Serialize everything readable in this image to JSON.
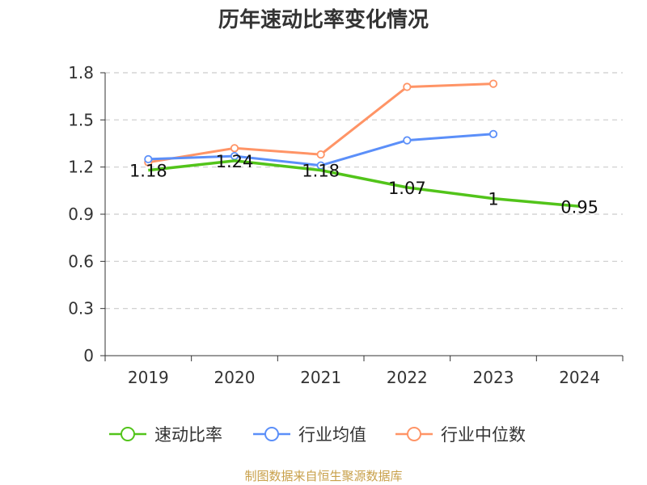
{
  "chart_data": {
    "type": "line",
    "title": "历年速动比率变化情况",
    "categories": [
      "2019",
      "2020",
      "2021",
      "2022",
      "2023",
      "2024"
    ],
    "y_ticks": [
      "0",
      "0.3",
      "0.6",
      "0.9",
      "1.2",
      "1.5",
      "1.8"
    ],
    "ylim": [
      0,
      1.8
    ],
    "grid": true,
    "legend_position": "bottom",
    "series": [
      {
        "name": "速动比率",
        "color": "#52c41a",
        "values": [
          1.18,
          1.24,
          1.18,
          1.07,
          1.0,
          0.95
        ],
        "data_labels": [
          "1.18",
          "1.24",
          "1.18",
          "1.07",
          "1",
          "0.95"
        ]
      },
      {
        "name": "行业均值",
        "color": "#5b8ff9",
        "values": [
          1.25,
          1.27,
          1.21,
          1.37,
          1.41,
          null
        ]
      },
      {
        "name": "行业中位数",
        "color": "#ff9466",
        "values": [
          1.23,
          1.32,
          1.28,
          1.71,
          1.73,
          null
        ]
      }
    ]
  },
  "source_note": "制图数据来自恒生聚源数据库"
}
